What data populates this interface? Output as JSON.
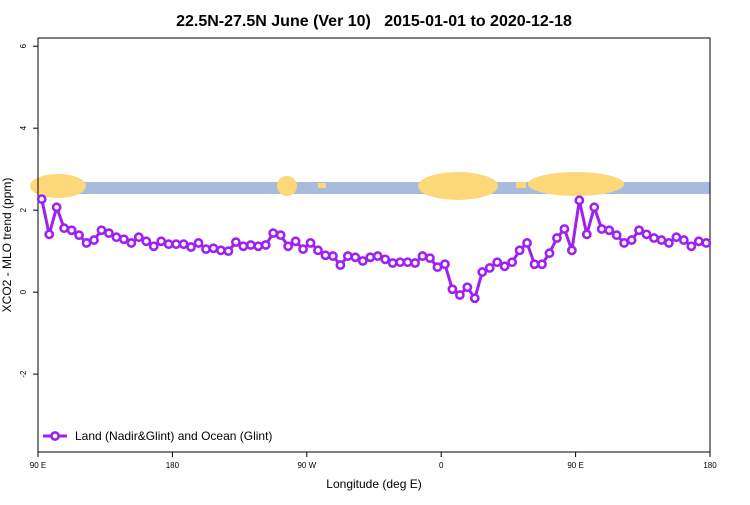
{
  "chart_data": {
    "type": "line",
    "title": "22.5N-27.5N June (Ver 10)   2015-01-01 to 2020-12-18",
    "xlabel": "Longitude (deg E)",
    "ylabel": "XCO2 - MLO trend (ppm)",
    "x": [
      92.5,
      97.5,
      102.5,
      107.5,
      112.5,
      117.5,
      122.5,
      127.5,
      132.5,
      137.5,
      142.5,
      147.5,
      152.5,
      157.5,
      162.5,
      167.5,
      172.5,
      177.5,
      182.5,
      187.5,
      192.5,
      197.5,
      202.5,
      207.5,
      212.5,
      217.5,
      222.5,
      227.5,
      232.5,
      237.5,
      242.5,
      247.5,
      252.5,
      257.5,
      262.5,
      267.5,
      272.5,
      277.5,
      282.5,
      287.5,
      292.5,
      297.5,
      302.5,
      307.5,
      312.5,
      317.5,
      322.5,
      327.5,
      332.5,
      337.5,
      342.5,
      347.5,
      352.5,
      357.5,
      362.5,
      367.5,
      372.5,
      377.5,
      382.5,
      387.5,
      392.5,
      397.5,
      402.5,
      407.5,
      412.5,
      417.5,
      422.5,
      427.5,
      432.5,
      437.5,
      442.5,
      447.5,
      452.5,
      457.5,
      462.5,
      467.5,
      472.5,
      477.5,
      482.5,
      487.5,
      492.5,
      497.5,
      502.5,
      507.5,
      512.5,
      517.5,
      522.5,
      527.5,
      532.5,
      537.5
    ],
    "series": [
      {
        "name": "Land (Nadir&Glint) and Ocean (Glint)",
        "color": "#a020f0",
        "values": [
          2.27,
          1.41,
          2.07,
          1.56,
          1.51,
          1.39,
          1.2,
          1.27,
          1.51,
          1.44,
          1.34,
          1.29,
          1.2,
          1.34,
          1.24,
          1.12,
          1.24,
          1.17,
          1.17,
          1.17,
          1.1,
          1.2,
          1.05,
          1.07,
          1.02,
          1.0,
          1.22,
          1.12,
          1.15,
          1.12,
          1.15,
          1.44,
          1.39,
          1.12,
          1.24,
          1.05,
          1.2,
          1.02,
          0.9,
          0.88,
          0.66,
          0.88,
          0.85,
          0.76,
          0.85,
          0.88,
          0.8,
          0.71,
          0.73,
          0.73,
          0.71,
          0.88,
          0.83,
          0.61,
          0.68,
          0.07,
          -0.07,
          0.12,
          -0.15,
          0.49,
          0.59,
          0.73,
          0.63,
          0.73,
          1.02,
          1.2,
          0.68,
          0.68,
          0.95,
          1.32,
          1.54,
          1.02,
          2.24,
          1.41,
          2.07,
          1.54,
          1.51,
          1.39,
          1.2,
          1.27,
          1.51,
          1.41,
          1.32,
          1.27,
          1.2,
          1.34,
          1.27,
          1.12,
          1.24,
          1.2
        ]
      }
    ],
    "xlim": [
      90,
      540
    ],
    "xticks": [
      {
        "value": 90,
        "label": "90 E"
      },
      180,
      {
        "value": 270,
        "label": "90 W"
      },
      {
        "value": 360,
        "label": "0"
      },
      {
        "value": 450,
        "label": "90 E"
      },
      {
        "value": 540,
        "label": "180"
      }
    ],
    "ylim": [
      -3.9,
      6.2
    ],
    "yticks": [
      -2,
      0,
      2,
      4,
      6
    ],
    "legend": "bottom-left"
  }
}
